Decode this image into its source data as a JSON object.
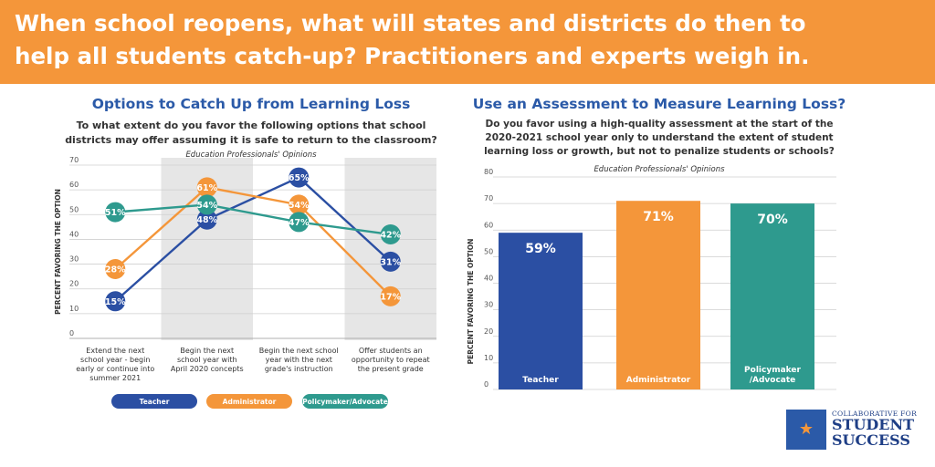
{
  "header": {
    "line1": "When school reopens, what will states and districts do then to",
    "line2": "help all students catch-up? Practitioners and experts weigh in."
  },
  "colors": {
    "banner": "#F4963A",
    "teacher": "#2B4FA3",
    "administrator": "#F4963A",
    "policymaker": "#2E9A8E",
    "title": "#2B5AA8"
  },
  "chart_data": [
    {
      "type": "line",
      "title": "Options to Catch Up from Learning Loss",
      "subtitle_lines": [
        "To what extent do you favor the following options that school",
        "districts may offer assuming it is safe to return to the classroom?"
      ],
      "note": "Education Professionals' Opinions",
      "ylabel": "PERCENT FAVORING THE OPTION",
      "ylim": [
        0,
        70
      ],
      "yticks": [
        "0",
        "10",
        "20",
        "30",
        "40",
        "50",
        "60",
        "70"
      ],
      "grid": true,
      "categories": [
        [
          "Extend the next",
          "school year - begin",
          "early or continue into",
          "summer 2021"
        ],
        [
          "Begin the next",
          "school year with",
          "April 2020 concepts"
        ],
        [
          "Begin the next school",
          "year with the next",
          "grade's instruction"
        ],
        [
          "Offer students an",
          "opportunity to repeat",
          "the present grade"
        ]
      ],
      "series": [
        {
          "name": "Teacher",
          "values": [
            15,
            48,
            65,
            31
          ],
          "labels": [
            "15%",
            "48%",
            "65%",
            "31%"
          ]
        },
        {
          "name": "Administrator",
          "values": [
            28,
            61,
            54,
            17
          ],
          "labels": [
            "28%",
            "61%",
            "54%",
            "17%"
          ]
        },
        {
          "name": "Policymaker/Advocate",
          "values": [
            51,
            54,
            47,
            42
          ],
          "labels": [
            "51%",
            "54%",
            "47%",
            "42%"
          ]
        }
      ],
      "legend_position": "bottom"
    },
    {
      "type": "bar",
      "title": "Use an Assessment to Measure Learning Loss?",
      "subtitle_lines": [
        "Do you favor using a high-quality assessment at the start of the",
        "2020-2021 school year only to understand the extent of student",
        "learning loss or growth, but not to penalize students or schools?"
      ],
      "note": "Education Professionals' Opinions",
      "ylabel": "PERCENT FAVORING THE OPTION",
      "ylim": [
        0,
        80
      ],
      "yticks": [
        "0",
        "10",
        "20",
        "30",
        "40",
        "50",
        "60",
        "70",
        "80"
      ],
      "grid": true,
      "categories": [
        [
          "Teacher"
        ],
        [
          "Administrator"
        ],
        [
          "Policymaker",
          "/Advocate"
        ]
      ],
      "values": [
        59,
        71,
        70
      ],
      "labels": [
        "59%",
        "71%",
        "70%"
      ]
    }
  ],
  "logo": {
    "small": "COLLABORATIVE FOR",
    "big1": "STUDENT",
    "big2": "SUCCESS"
  }
}
